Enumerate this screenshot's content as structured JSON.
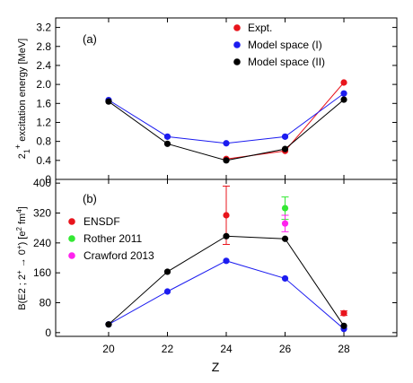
{
  "figure": {
    "xlabel": "Z",
    "x_ticks": [
      "20",
      "22",
      "24",
      "26",
      "28"
    ]
  },
  "chart_data": [
    {
      "type": "line",
      "panel_label": "(a)",
      "ylabel_html": "2<tspan baseline-shift='sub' font-size='9'>1</tspan><tspan baseline-shift='super' font-size='9'>+</tspan> excitation energy [MeV]",
      "ylabel": "2₁⁺ excitation energy [MeV]",
      "xlim": [
        18.2,
        29.8
      ],
      "ylim": [
        0,
        3.4
      ],
      "y_ticks": [
        0,
        0.4,
        0.8,
        1.2,
        1.6,
        2.0,
        2.4,
        2.8,
        3.2
      ],
      "y_tick_labels": [
        "0",
        "0.4",
        "0.8",
        "1.2",
        "1.6",
        "2.0",
        "2.4",
        "2.8",
        "3.2"
      ],
      "legend_position": "top-right",
      "series": [
        {
          "name": "Expt.",
          "color": "#e8141c",
          "x": [
            24,
            26,
            28
          ],
          "y": [
            0.43,
            0.6,
            2.04
          ],
          "line": true
        },
        {
          "name": "Model space (I)",
          "color": "#1c1cf0",
          "x": [
            20,
            22,
            24,
            26,
            28
          ],
          "y": [
            1.67,
            0.9,
            0.76,
            0.9,
            1.81
          ],
          "line": true
        },
        {
          "name": "Model space (II)",
          "color": "#000000",
          "x": [
            20,
            22,
            24,
            26,
            28
          ],
          "y": [
            1.64,
            0.75,
            0.4,
            0.64,
            1.68
          ],
          "line": true
        }
      ]
    },
    {
      "type": "line",
      "panel_label": "(b)",
      "ylabel_html": "B(E2 ; 2<tspan baseline-shift='super' font-size='8'>+</tspan> → 0<tspan baseline-shift='super' font-size='8'>+</tspan>) [e<tspan baseline-shift='super' font-size='8'>2</tspan> fm<tspan baseline-shift='super' font-size='8'>4</tspan>]",
      "ylabel": "B(E2 ; 2⁺ → 0⁺) [e² fm⁴]",
      "xlim": [
        18.2,
        29.8
      ],
      "ylim": [
        -10,
        410
      ],
      "y_ticks": [
        0,
        80,
        160,
        240,
        320,
        400
      ],
      "y_tick_labels": [
        "0",
        "80",
        "160",
        "240",
        "320",
        "400"
      ],
      "legend_position": "left",
      "series": [
        {
          "name": "ENSDF",
          "color": "#e8141c",
          "x": [
            24,
            28
          ],
          "y": [
            314,
            52
          ],
          "err": [
            78,
            6
          ],
          "line": false
        },
        {
          "name": "Rother 2011",
          "color": "#33e833",
          "x": [
            26
          ],
          "y": [
            333
          ],
          "err": [
            30
          ],
          "line": false
        },
        {
          "name": "Crawford 2013",
          "color": "#ff22ee",
          "x": [
            26
          ],
          "y": [
            292
          ],
          "err": [
            22
          ],
          "line": false
        },
        {
          "name": "",
          "color": "#1c1cf0",
          "x": [
            20,
            22,
            24,
            26,
            28
          ],
          "y": [
            22,
            110,
            192,
            145,
            10
          ],
          "line": true,
          "legend": false
        },
        {
          "name": "",
          "color": "#000000",
          "x": [
            20,
            22,
            24,
            26,
            28
          ],
          "y": [
            22,
            163,
            258,
            251,
            18
          ],
          "line": true,
          "legend": false
        }
      ]
    }
  ]
}
